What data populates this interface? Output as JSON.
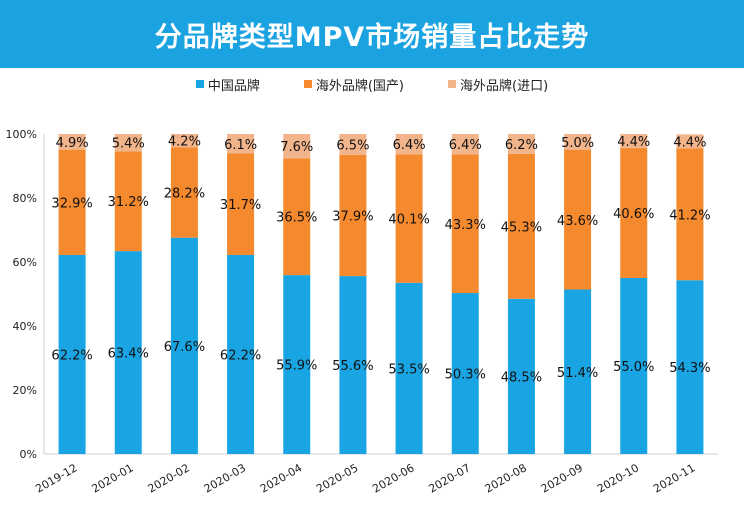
{
  "chart_data": {
    "type": "bar",
    "stacked": true,
    "title": "分品牌类型MPV市场销量占比走势",
    "categories": [
      "2019-12",
      "2020-01",
      "2020-02",
      "2020-03",
      "2020-04",
      "2020-05",
      "2020-06",
      "2020-07",
      "2020-08",
      "2020-09",
      "2020-10",
      "2020-11"
    ],
    "series": [
      {
        "name": "中国品牌",
        "color": "#19a5e3",
        "values": [
          62.2,
          63.4,
          67.6,
          62.2,
          55.9,
          55.6,
          53.5,
          50.3,
          48.5,
          51.4,
          55.0,
          54.3
        ]
      },
      {
        "name": "海外品牌(国产)",
        "color": "#f5892e",
        "values": [
          32.9,
          31.2,
          28.2,
          31.7,
          36.5,
          37.9,
          40.1,
          43.3,
          45.3,
          43.6,
          40.6,
          41.2
        ]
      },
      {
        "name": "海外品牌(进口)",
        "color": "#f2b48a",
        "values": [
          4.9,
          5.4,
          4.2,
          6.1,
          7.6,
          6.5,
          6.4,
          6.4,
          6.2,
          5.0,
          4.4,
          4.4
        ]
      }
    ],
    "yticks": [
      "0%",
      "20%",
      "40%",
      "60%",
      "80%",
      "100%"
    ],
    "ylim": [
      0,
      100
    ],
    "legend_position": "top"
  }
}
